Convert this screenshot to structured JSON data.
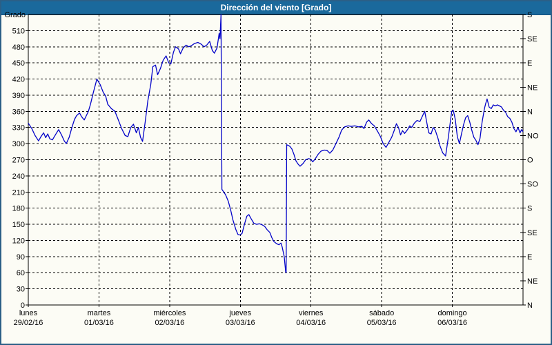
{
  "window": {
    "title": "Dirección del viento [Grado]"
  },
  "chart_data": {
    "type": "line",
    "title": "Dirección del viento [Grado]",
    "ylabel": "Grado",
    "y_axis_left": {
      "top_label": "Grado",
      "ticks": [
        0,
        30,
        60,
        90,
        120,
        150,
        180,
        210,
        240,
        270,
        300,
        330,
        360,
        390,
        420,
        450,
        480,
        510
      ],
      "range": [
        0,
        540
      ]
    },
    "y_axis_right": {
      "note": "compass directions every 45 degrees, bottom to top",
      "labels_bottom_to_top": [
        "N",
        "NE",
        "E",
        "SE",
        "S",
        "SO",
        "O",
        "NO",
        "N",
        "NE",
        "E",
        "SE",
        "S"
      ],
      "step": 45
    },
    "x_axis": {
      "days": [
        {
          "name": "lunes",
          "date": "29/02/16"
        },
        {
          "name": "martes",
          "date": "01/03/16"
        },
        {
          "name": "miércoles",
          "date": "02/03/16"
        },
        {
          "name": "jueves",
          "date": "03/03/16"
        },
        {
          "name": "viernes",
          "date": "04/03/16"
        },
        {
          "name": "sábado",
          "date": "05/03/16"
        },
        {
          "name": "domingo",
          "date": "06/03/16"
        }
      ],
      "range_hours": [
        0,
        168
      ]
    },
    "grid": true,
    "legend": "none",
    "colors": {
      "line": "#0202c8",
      "titlebar": "#1a699c",
      "frame_border": "#2b5f86",
      "background": "#fcfcf5",
      "axis": "#000000"
    },
    "series": [
      {
        "name": "Dirección del viento",
        "unit": "Grado",
        "points_hours_degrees": [
          [
            0,
            338
          ],
          [
            1.2,
            328
          ],
          [
            2.3,
            315
          ],
          [
            3.5,
            305
          ],
          [
            4.2,
            312
          ],
          [
            5.2,
            320
          ],
          [
            5.9,
            311
          ],
          [
            6.6,
            318
          ],
          [
            7.3,
            309
          ],
          [
            8.2,
            307
          ],
          [
            9.4,
            318
          ],
          [
            10.3,
            326
          ],
          [
            11.3,
            316
          ],
          [
            12.2,
            305
          ],
          [
            12.9,
            300
          ],
          [
            13.9,
            312
          ],
          [
            14.8,
            330
          ],
          [
            15.7,
            345
          ],
          [
            16.4,
            352
          ],
          [
            17.4,
            357
          ],
          [
            18.1,
            350
          ],
          [
            19,
            344
          ],
          [
            19.7,
            352
          ],
          [
            20.4,
            360
          ],
          [
            21.1,
            373
          ],
          [
            22.1,
            395
          ],
          [
            23.3,
            420
          ],
          [
            24.4,
            410
          ],
          [
            25.4,
            396
          ],
          [
            26.3,
            388
          ],
          [
            27,
            373
          ],
          [
            28.2,
            365
          ],
          [
            29.4,
            360
          ],
          [
            30.5,
            345
          ],
          [
            31.7,
            328
          ],
          [
            32.9,
            315
          ],
          [
            33.8,
            313
          ],
          [
            34.8,
            330
          ],
          [
            35.7,
            336
          ],
          [
            36.7,
            320
          ],
          [
            37.4,
            330
          ],
          [
            38.1,
            312
          ],
          [
            38.8,
            304
          ],
          [
            39.7,
            340
          ],
          [
            40.6,
            380
          ],
          [
            41.6,
            410
          ],
          [
            42.3,
            443
          ],
          [
            43.2,
            446
          ],
          [
            43.9,
            428
          ],
          [
            44.9,
            440
          ],
          [
            45.8,
            455
          ],
          [
            46.8,
            463
          ],
          [
            47.7,
            450
          ],
          [
            48.4,
            448
          ],
          [
            49.3,
            470
          ],
          [
            50,
            480
          ],
          [
            51,
            476
          ],
          [
            51.7,
            467
          ],
          [
            52.6,
            478
          ],
          [
            53.6,
            483
          ],
          [
            54.5,
            480
          ],
          [
            55.4,
            482
          ],
          [
            56.4,
            486
          ],
          [
            57.6,
            488
          ],
          [
            58.7,
            485
          ],
          [
            59.7,
            480
          ],
          [
            60.6,
            483
          ],
          [
            61.6,
            490
          ],
          [
            62.5,
            473
          ],
          [
            63.2,
            468
          ],
          [
            64.1,
            478
          ],
          [
            64.8,
            505
          ],
          [
            65.1,
            495
          ],
          [
            65.45,
            540
          ],
          [
            65.75,
            215
          ],
          [
            67,
            205
          ],
          [
            67.9,
            193
          ],
          [
            68.8,
            175
          ],
          [
            69.5,
            158
          ],
          [
            70.5,
            140
          ],
          [
            71.2,
            131
          ],
          [
            71.9,
            130
          ],
          [
            72.6,
            133
          ],
          [
            73.5,
            152
          ],
          [
            74.2,
            165
          ],
          [
            74.9,
            168
          ],
          [
            75.7,
            160
          ],
          [
            76.6,
            152
          ],
          [
            77.5,
            150
          ],
          [
            78.5,
            151
          ],
          [
            79.4,
            149
          ],
          [
            80.3,
            146
          ],
          [
            81.1,
            140
          ],
          [
            82,
            135
          ],
          [
            82.7,
            125
          ],
          [
            83.4,
            118
          ],
          [
            84.3,
            114
          ],
          [
            85.1,
            112
          ],
          [
            85.8,
            115
          ],
          [
            86.2,
            108
          ],
          [
            86.9,
            90
          ],
          [
            87.4,
            62
          ],
          [
            87.55,
            60
          ],
          [
            87.75,
            298
          ],
          [
            88.8,
            295
          ],
          [
            89.5,
            290
          ],
          [
            90.2,
            280
          ],
          [
            90.9,
            268
          ],
          [
            91.6,
            262
          ],
          [
            92.3,
            258
          ],
          [
            93.3,
            263
          ],
          [
            94.2,
            270
          ],
          [
            95.2,
            272
          ],
          [
            95.9,
            271
          ],
          [
            96.6,
            266
          ],
          [
            97.5,
            272
          ],
          [
            98.4,
            280
          ],
          [
            99.4,
            286
          ],
          [
            100.6,
            288
          ],
          [
            101.5,
            287
          ],
          [
            102.4,
            282
          ],
          [
            103.4,
            288
          ],
          [
            104.3,
            298
          ],
          [
            105.5,
            312
          ],
          [
            106.4,
            325
          ],
          [
            107.4,
            331
          ],
          [
            108.6,
            333
          ],
          [
            109.7,
            332
          ],
          [
            110.9,
            333
          ],
          [
            112.1,
            331
          ],
          [
            113.3,
            332
          ],
          [
            114,
            328
          ],
          [
            114.9,
            340
          ],
          [
            115.6,
            344
          ],
          [
            116.6,
            337
          ],
          [
            117.5,
            333
          ],
          [
            118.7,
            322
          ],
          [
            119.6,
            313
          ],
          [
            120.5,
            300
          ],
          [
            121.5,
            293
          ],
          [
            122.4,
            302
          ],
          [
            123.4,
            312
          ],
          [
            124.3,
            325
          ],
          [
            125,
            337
          ],
          [
            125.7,
            330
          ],
          [
            126.4,
            316
          ],
          [
            127.1,
            324
          ],
          [
            127.8,
            319
          ],
          [
            128.8,
            326
          ],
          [
            129.5,
            333
          ],
          [
            130.2,
            330
          ],
          [
            131.1,
            338
          ],
          [
            132,
            343
          ],
          [
            133,
            341
          ],
          [
            133.9,
            352
          ],
          [
            134.6,
            360
          ],
          [
            135.3,
            340
          ],
          [
            136,
            320
          ],
          [
            136.8,
            318
          ],
          [
            137.5,
            330
          ],
          [
            138.2,
            325
          ],
          [
            139.1,
            310
          ],
          [
            139.8,
            296
          ],
          [
            140.7,
            283
          ],
          [
            141.7,
            277
          ],
          [
            142.6,
            310
          ],
          [
            143.3,
            340
          ],
          [
            143.8,
            360
          ],
          [
            144.3,
            362
          ],
          [
            145,
            345
          ],
          [
            145.7,
            313
          ],
          [
            146.4,
            300
          ],
          [
            147.1,
            318
          ],
          [
            147.8,
            335
          ],
          [
            148.5,
            348
          ],
          [
            149.2,
            352
          ],
          [
            149.9,
            340
          ],
          [
            150.6,
            325
          ],
          [
            151.3,
            312
          ],
          [
            152,
            306
          ],
          [
            152.7,
            298
          ],
          [
            153.4,
            310
          ],
          [
            154.1,
            340
          ],
          [
            154.9,
            365
          ],
          [
            155.3,
            374
          ],
          [
            155.8,
            383
          ],
          [
            156.5,
            368
          ],
          [
            157.2,
            365
          ],
          [
            157.9,
            372
          ],
          [
            158.6,
            370
          ],
          [
            159.3,
            372
          ],
          [
            160,
            370
          ],
          [
            160.7,
            368
          ],
          [
            161.4,
            362
          ],
          [
            162.1,
            358
          ],
          [
            162.8,
            350
          ],
          [
            163.5,
            347
          ],
          [
            164.2,
            340
          ],
          [
            164.9,
            328
          ],
          [
            165.6,
            322
          ],
          [
            166.3,
            330
          ],
          [
            167,
            320
          ],
          [
            167.5,
            326
          ],
          [
            168,
            322
          ]
        ]
      }
    ]
  }
}
